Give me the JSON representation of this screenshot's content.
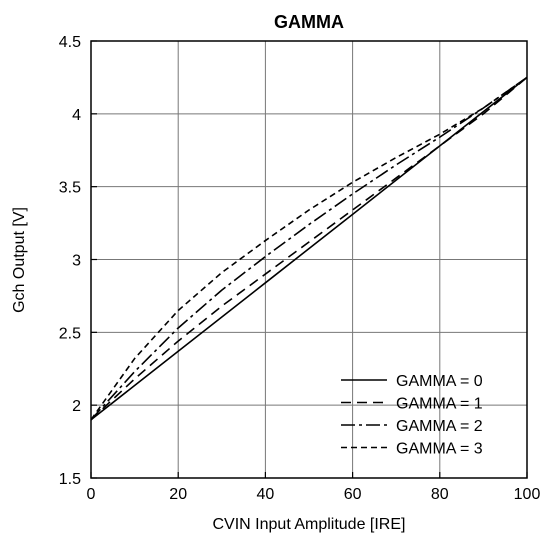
{
  "chart_data": {
    "type": "line",
    "title": "GAMMA",
    "xlabel": "CVIN Input Amplitude [IRE]",
    "ylabel": "Gch Output [V]",
    "xlim": [
      0,
      100
    ],
    "ylim": [
      1.5,
      4.5
    ],
    "xticks": [
      0,
      20,
      40,
      60,
      80,
      100
    ],
    "yticks": [
      1.5,
      2,
      2.5,
      3,
      3.5,
      4,
      4.5
    ],
    "xtick_labels": [
      "0",
      "20",
      "40",
      "60",
      "80",
      "100"
    ],
    "ytick_labels": [
      "1.5",
      "2",
      "2.5",
      "3",
      "3.5",
      "4",
      "4.5"
    ],
    "grid": true,
    "legend_position": "bottom-right",
    "series": [
      {
        "name": "GAMMA = 0",
        "dash": "solid",
        "x": [
          0,
          20,
          40,
          60,
          80,
          100
        ],
        "y": [
          1.9,
          2.37,
          2.84,
          3.31,
          3.78,
          4.25
        ]
      },
      {
        "name": "GAMMA = 1",
        "dash": "dashed",
        "x": [
          0,
          10,
          20,
          30,
          40,
          50,
          60,
          70,
          80,
          90,
          100
        ],
        "y": [
          1.9,
          2.18,
          2.44,
          2.68,
          2.9,
          3.12,
          3.34,
          3.56,
          3.78,
          4.0,
          4.25
        ]
      },
      {
        "name": "GAMMA = 2",
        "dash": "dashdot",
        "x": [
          0,
          10,
          20,
          30,
          40,
          50,
          60,
          70,
          80,
          90,
          100
        ],
        "y": [
          1.9,
          2.23,
          2.53,
          2.79,
          3.02,
          3.24,
          3.45,
          3.65,
          3.84,
          4.04,
          4.25
        ]
      },
      {
        "name": "GAMMA = 3",
        "dash": "shortdash",
        "x": [
          0,
          10,
          20,
          30,
          40,
          50,
          60,
          70,
          80,
          90,
          100
        ],
        "y": [
          1.9,
          2.32,
          2.65,
          2.91,
          3.13,
          3.34,
          3.53,
          3.7,
          3.86,
          4.04,
          4.25
        ]
      }
    ]
  }
}
